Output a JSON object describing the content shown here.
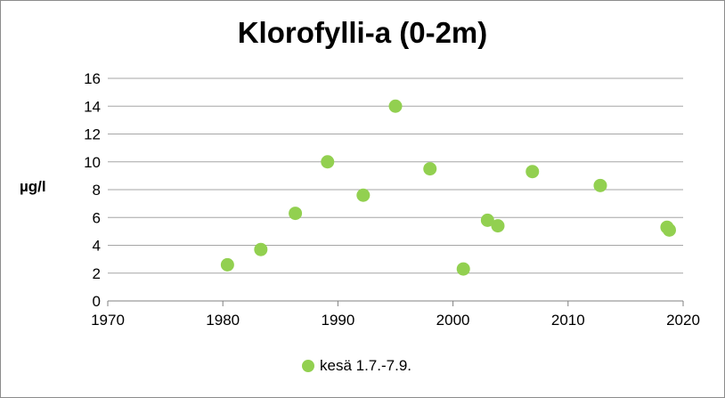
{
  "chart_data": {
    "type": "scatter",
    "title": "Klorofylli-a (0-2m)",
    "xlabel": "",
    "ylabel": "µg/l",
    "xlim": [
      1970,
      2020
    ],
    "ylim": [
      0,
      16
    ],
    "xticks": [
      1970,
      1980,
      1990,
      2000,
      2010,
      2020
    ],
    "yticks": [
      0,
      2,
      4,
      6,
      8,
      10,
      12,
      14,
      16
    ],
    "grid": "horizontal",
    "legend_position": "bottom",
    "series": [
      {
        "name": "kesä 1.7.-7.9.",
        "color": "#92d050",
        "points": [
          {
            "x": 1980.4,
            "y": 2.6
          },
          {
            "x": 1983.3,
            "y": 3.7
          },
          {
            "x": 1986.3,
            "y": 6.3
          },
          {
            "x": 1989.1,
            "y": 10.0
          },
          {
            "x": 1992.2,
            "y": 7.6
          },
          {
            "x": 1995.0,
            "y": 14.0
          },
          {
            "x": 1998.0,
            "y": 9.5
          },
          {
            "x": 2000.9,
            "y": 2.3
          },
          {
            "x": 2003.0,
            "y": 5.8
          },
          {
            "x": 2003.9,
            "y": 5.4
          },
          {
            "x": 2006.9,
            "y": 9.3
          },
          {
            "x": 2012.8,
            "y": 8.3
          },
          {
            "x": 2018.6,
            "y": 5.3
          },
          {
            "x": 2018.8,
            "y": 5.1
          }
        ]
      }
    ]
  }
}
